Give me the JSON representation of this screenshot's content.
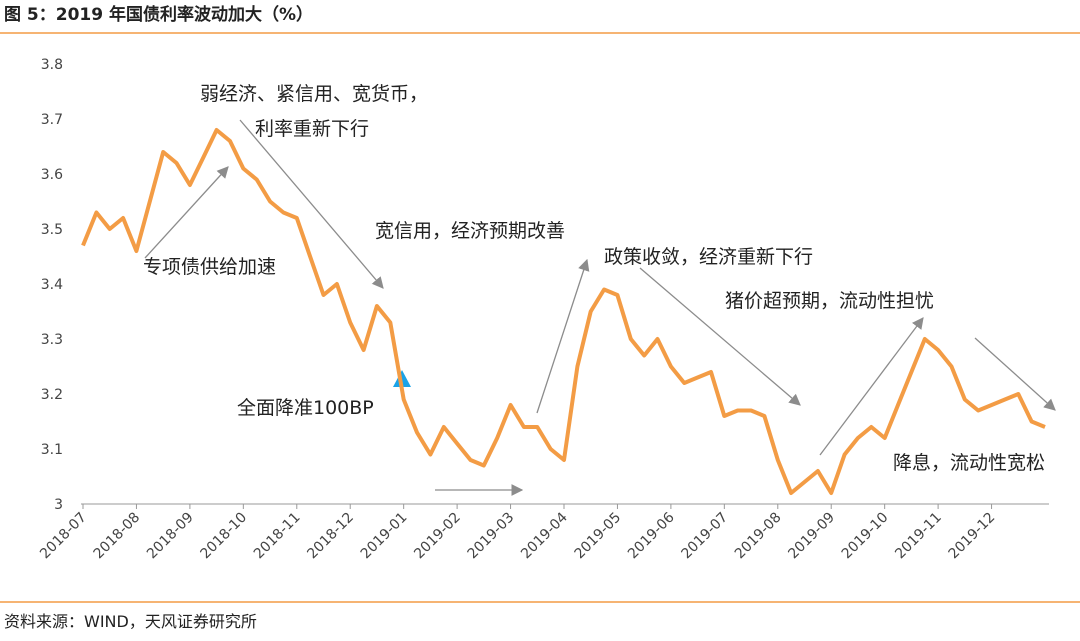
{
  "chart_data": {
    "type": "line",
    "title": "图 5：2019 年国债利率波动加大（%）",
    "source": "资料来源：WIND，天风证券研究所",
    "categories": [
      "2018-07",
      null,
      null,
      null,
      "2018-08",
      null,
      null,
      null,
      "2018-09",
      null,
      null,
      null,
      "2018-10",
      null,
      null,
      null,
      "2018-11",
      null,
      null,
      null,
      "2018-12",
      null,
      null,
      null,
      "2019-01",
      null,
      null,
      null,
      "2019-02",
      null,
      null,
      null,
      "2019-03",
      null,
      null,
      null,
      "2019-04",
      null,
      null,
      null,
      "2019-05",
      null,
      null,
      null,
      "2019-06",
      null,
      null,
      null,
      "2019-07",
      null,
      null,
      null,
      "2019-08",
      null,
      null,
      null,
      "2019-09",
      null,
      null,
      null,
      "2019-10",
      null,
      null,
      null,
      "2019-11",
      null,
      null,
      null,
      "2019-12",
      null,
      null,
      null,
      null
    ],
    "values": [
      3.47,
      3.53,
      3.5,
      3.52,
      3.46,
      3.55,
      3.64,
      3.62,
      3.58,
      3.63,
      3.68,
      3.66,
      3.61,
      3.59,
      3.55,
      3.53,
      3.52,
      3.45,
      3.38,
      3.4,
      3.33,
      3.28,
      3.36,
      3.33,
      3.19,
      3.13,
      3.09,
      3.14,
      3.11,
      3.08,
      3.07,
      3.12,
      3.18,
      3.14,
      3.14,
      3.1,
      3.08,
      3.25,
      3.35,
      3.39,
      3.38,
      3.3,
      3.27,
      3.3,
      3.25,
      3.22,
      3.23,
      3.24,
      3.16,
      3.17,
      3.17,
      3.16,
      3.08,
      3.02,
      3.04,
      3.06,
      3.02,
      3.09,
      3.12,
      3.14,
      3.12,
      3.18,
      3.24,
      3.3,
      3.28,
      3.25,
      3.19,
      3.17,
      3.18,
      3.19,
      3.2,
      3.15,
      3.14
    ],
    "color": "#f39c45",
    "ylim": [
      3,
      3.8
    ],
    "yticks": [
      3,
      3.1,
      3.2,
      3.3,
      3.4,
      3.5,
      3.6,
      3.7,
      3.8
    ],
    "annotations": [
      "弱经济、紧信用、宽货币，",
      "利率重新下行",
      "专项债供给加速",
      "宽信用，经济预期改善",
      "政策收敛，经济重新下行",
      "猪价超预期，流动性担忧",
      "全面降准100BP",
      "降息，流动性宽松"
    ]
  }
}
